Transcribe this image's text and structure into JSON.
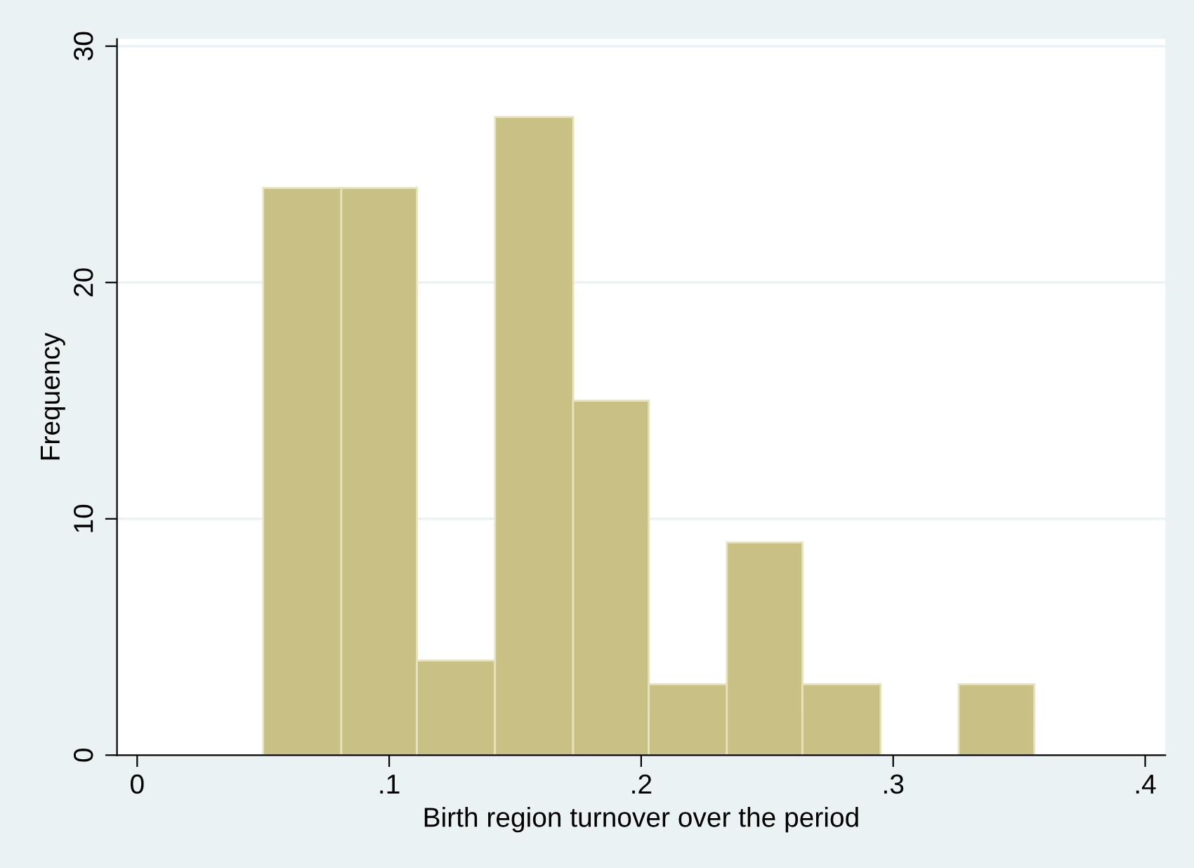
{
  "chart_data": {
    "type": "histogram",
    "xlabel": "Birth region turnover over the period",
    "ylabel": "Frequency",
    "bins": [
      0.05,
      0.081,
      0.111,
      0.142,
      0.173,
      0.203,
      0.234,
      0.264,
      0.295,
      0.326,
      0.356
    ],
    "values": [
      24,
      24,
      4,
      27,
      15,
      3,
      9,
      3,
      0,
      3
    ],
    "color": "#c9c083",
    "xlim": [
      -0.008,
      0.408
    ],
    "ylim": [
      0,
      30.3
    ],
    "xticks": [
      0,
      {
        "value": 0.1,
        "label": ".1"
      },
      {
        "value": 0.2,
        "label": ".2"
      },
      {
        "value": 0.3,
        "label": ".3"
      },
      {
        "value": 0.4,
        "label": ".4"
      }
    ],
    "yticks": [
      0,
      10,
      20,
      30
    ],
    "grid": "y"
  }
}
